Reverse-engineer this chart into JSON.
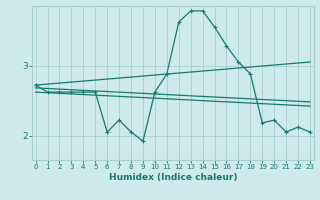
{
  "xlabel": "Humidex (Indice chaleur)",
  "bg_color": "#ceeaea",
  "grid_color": "#aacfcf",
  "line_color": "#1a7a6e",
  "x_ticks": [
    0,
    1,
    2,
    3,
    4,
    5,
    6,
    7,
    8,
    9,
    10,
    11,
    12,
    13,
    14,
    15,
    16,
    17,
    18,
    19,
    20,
    21,
    22,
    23
  ],
  "y_ticks": [
    2,
    3
  ],
  "ylim": [
    1.65,
    3.85
  ],
  "xlim": [
    -0.3,
    23.3
  ],
  "line1_x": [
    0,
    1,
    2,
    3,
    4,
    5,
    6,
    7,
    8,
    9,
    10,
    11,
    12,
    13,
    14,
    15,
    16,
    17,
    18,
    19,
    20,
    21,
    22,
    23
  ],
  "line1_y": [
    2.72,
    2.62,
    2.62,
    2.62,
    2.62,
    2.62,
    2.05,
    2.22,
    2.05,
    1.92,
    2.62,
    2.88,
    3.62,
    3.78,
    3.78,
    3.55,
    3.28,
    3.05,
    2.88,
    2.18,
    2.22,
    2.05,
    2.12,
    2.05
  ],
  "line2_x": [
    0,
    23
  ],
  "line2_y": [
    2.68,
    2.48
  ],
  "line3_x": [
    0,
    23
  ],
  "line3_y": [
    2.62,
    2.42
  ],
  "line4_x": [
    0,
    23
  ],
  "line4_y": [
    2.72,
    3.05
  ]
}
